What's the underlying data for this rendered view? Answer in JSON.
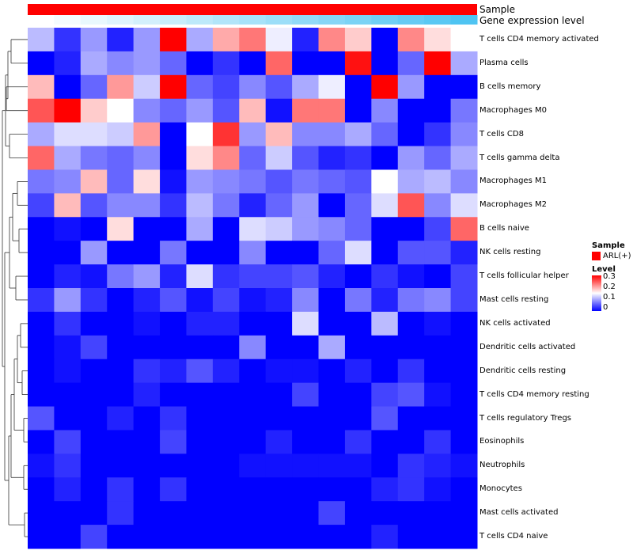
{
  "chart_data": {
    "type": "heatmap",
    "annotation_rows": [
      {
        "label": "Sample"
      },
      {
        "label": "Gene expression level"
      }
    ],
    "rows": [
      "T cells CD4 memory activated",
      "Plasma cells",
      "B cells memory",
      "Macrophages M0",
      "T cells CD8",
      "T cells gamma delta",
      "Macrophages M1",
      "Macrophages M2",
      "B cells naive",
      "NK cells resting",
      "T cells follicular helper",
      "Mast cells resting",
      "NK cells activated",
      "Dendritic cells activated",
      "Dendritic cells resting",
      "T cells CD4 memory resting",
      "T cells regulatory  Tregs",
      "Eosinophils",
      "Neutrophils",
      "Monocytes",
      "Mast cells activated",
      "T cells CD4 naive"
    ],
    "n_columns": 17,
    "values": [
      [
        0.11,
        0.03,
        0.09,
        0.02,
        0.09,
        0.3,
        0.1,
        0.2,
        0.23,
        0.14,
        0.02,
        0.22,
        0.18,
        0.0,
        0.22,
        0.17,
        0.15
      ],
      [
        0.0,
        0.02,
        0.1,
        0.08,
        0.09,
        0.06,
        0.0,
        0.03,
        0.0,
        0.24,
        0.0,
        0.0,
        0.29,
        0.0,
        0.06,
        0.3,
        0.1
      ],
      [
        0.19,
        0.0,
        0.06,
        0.21,
        0.12,
        0.3,
        0.06,
        0.04,
        0.08,
        0.05,
        0.1,
        0.14,
        0.0,
        0.3,
        0.09,
        0.0,
        0.0
      ],
      [
        0.25,
        0.3,
        0.18,
        0.15,
        0.08,
        0.06,
        0.09,
        0.05,
        0.19,
        0.01,
        0.23,
        0.23,
        0.0,
        0.08,
        0.0,
        0.0,
        0.07
      ],
      [
        0.1,
        0.13,
        0.13,
        0.12,
        0.21,
        0.0,
        0.15,
        0.27,
        0.09,
        0.19,
        0.08,
        0.08,
        0.1,
        0.06,
        0.0,
        0.03,
        0.08
      ],
      [
        0.24,
        0.1,
        0.07,
        0.06,
        0.08,
        0.0,
        0.17,
        0.22,
        0.06,
        0.12,
        0.05,
        0.02,
        0.03,
        0.0,
        0.09,
        0.06,
        0.1
      ],
      [
        0.07,
        0.08,
        0.19,
        0.06,
        0.17,
        0.01,
        0.09,
        0.08,
        0.07,
        0.05,
        0.07,
        0.06,
        0.05,
        0.15,
        0.1,
        0.11,
        0.08
      ],
      [
        0.04,
        0.19,
        0.05,
        0.08,
        0.08,
        0.03,
        0.11,
        0.07,
        0.02,
        0.06,
        0.09,
        0.0,
        0.06,
        0.13,
        0.25,
        0.08,
        0.13
      ],
      [
        0.0,
        0.01,
        0.0,
        0.17,
        0.0,
        0.0,
        0.1,
        0.0,
        0.13,
        0.12,
        0.09,
        0.08,
        0.06,
        0.0,
        0.0,
        0.04,
        0.24
      ],
      [
        0.0,
        0.0,
        0.09,
        0.0,
        0.0,
        0.07,
        0.0,
        0.0,
        0.08,
        0.0,
        0.0,
        0.06,
        0.13,
        0.0,
        0.05,
        0.05,
        0.02
      ],
      [
        0.0,
        0.02,
        0.01,
        0.07,
        0.09,
        0.02,
        0.13,
        0.03,
        0.04,
        0.04,
        0.05,
        0.02,
        0.0,
        0.03,
        0.01,
        0.0,
        0.04
      ],
      [
        0.03,
        0.09,
        0.03,
        0.0,
        0.02,
        0.05,
        0.01,
        0.04,
        0.01,
        0.02,
        0.08,
        0.0,
        0.07,
        0.02,
        0.07,
        0.08,
        0.04
      ],
      [
        0.0,
        0.03,
        0.0,
        0.0,
        0.01,
        0.0,
        0.02,
        0.02,
        0.0,
        0.0,
        0.13,
        0.0,
        0.0,
        0.11,
        0.0,
        0.01,
        0.0
      ],
      [
        0.0,
        0.01,
        0.04,
        0.0,
        0.0,
        0.0,
        0.0,
        0.0,
        0.08,
        0.0,
        0.0,
        0.1,
        0.0,
        0.0,
        0.0,
        0.0,
        0.0
      ],
      [
        0.0,
        0.01,
        0.0,
        0.0,
        0.03,
        0.02,
        0.05,
        0.02,
        0.0,
        0.01,
        0.01,
        0.0,
        0.02,
        0.0,
        0.03,
        0.0,
        0.0
      ],
      [
        0.0,
        0.0,
        0.0,
        0.0,
        0.02,
        0.0,
        0.0,
        0.0,
        0.0,
        0.0,
        0.04,
        0.0,
        0.0,
        0.04,
        0.05,
        0.01,
        0.0
      ],
      [
        0.05,
        0.0,
        0.0,
        0.02,
        0.0,
        0.03,
        0.0,
        0.0,
        0.0,
        0.0,
        0.0,
        0.0,
        0.0,
        0.05,
        0.0,
        0.0,
        0.0
      ],
      [
        0.0,
        0.04,
        0.0,
        0.0,
        0.0,
        0.04,
        0.0,
        0.0,
        0.0,
        0.02,
        0.0,
        0.0,
        0.03,
        0.0,
        0.0,
        0.03,
        0.0
      ],
      [
        0.01,
        0.03,
        0.0,
        0.0,
        0.0,
        0.0,
        0.0,
        0.0,
        0.01,
        0.01,
        0.01,
        0.01,
        0.01,
        0.0,
        0.03,
        0.02,
        0.01
      ],
      [
        0.0,
        0.02,
        0.0,
        0.03,
        0.0,
        0.03,
        0.0,
        0.0,
        0.0,
        0.0,
        0.0,
        0.0,
        0.0,
        0.02,
        0.03,
        0.01,
        0.0
      ],
      [
        0.0,
        0.0,
        0.0,
        0.03,
        0.0,
        0.0,
        0.0,
        0.0,
        0.0,
        0.0,
        0.0,
        0.04,
        0.0,
        0.0,
        0.0,
        0.0,
        0.0
      ],
      [
        0.0,
        0.0,
        0.04,
        0.0,
        0.0,
        0.0,
        0.0,
        0.0,
        0.0,
        0.0,
        0.0,
        0.0,
        0.0,
        0.02,
        0.0,
        0.0,
        0.0
      ]
    ],
    "dendrogram_order_note": "rows clustered; order as listed",
    "legend": {
      "sample_title": "Sample",
      "sample_entry": "ARL(+)",
      "level_title": "Level",
      "level_ticks": [
        "0.3",
        "0.2",
        "0.1",
        "0"
      ],
      "level_range": [
        0,
        0.3
      ]
    },
    "colors": {
      "low": "#0000FF",
      "mid": "#FFFFFF",
      "high": "#FF0000",
      "sample": "#FF0000",
      "expr_low": "#FFFFFF",
      "expr_high": "#4FC4F2"
    }
  }
}
